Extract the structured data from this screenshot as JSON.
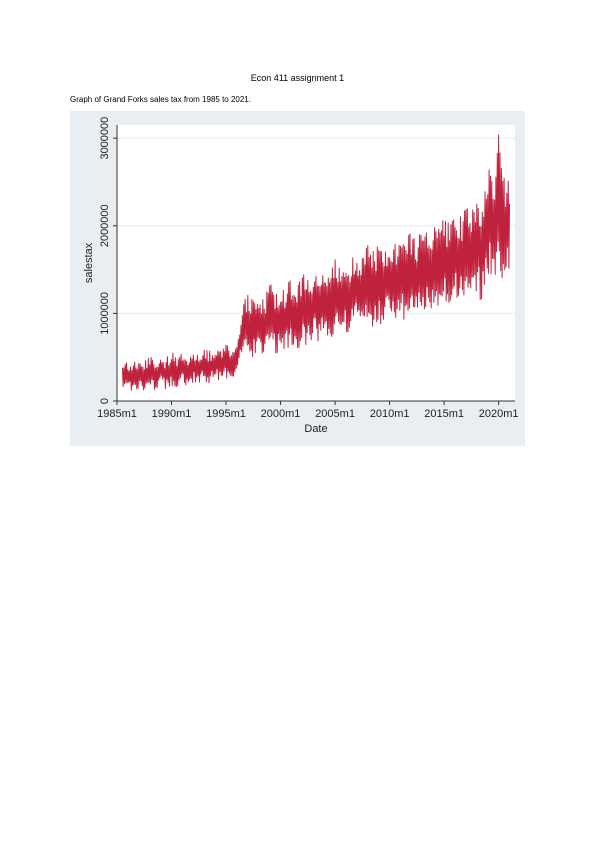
{
  "document": {
    "title": "Econ 411 assignment 1",
    "caption": "Graph of Grand Forks sales tax from 1985 to 2021."
  },
  "colors": {
    "line": "#c0213d",
    "plot_background": "#ffffff",
    "outer_background": "#e8eef2",
    "gridline": "#e6ebee"
  },
  "chart_data": {
    "type": "line",
    "title": "",
    "xlabel": "Date",
    "ylabel": "salestax",
    "x_ticks": [
      "1985m1",
      "1990m1",
      "1995m1",
      "2000m1",
      "2005m1",
      "2010m1",
      "2015m1",
      "2020m1"
    ],
    "x_tick_values": [
      1985,
      1990,
      1995,
      2000,
      2005,
      2010,
      2015,
      2020
    ],
    "y_ticks": [
      "0",
      "1000000",
      "2000000",
      "3000000"
    ],
    "y_tick_values": [
      0,
      1000000,
      2000000,
      3000000
    ],
    "xlim": [
      1985,
      2021.5
    ],
    "ylim": [
      0,
      3150000
    ],
    "grid": true,
    "series": [
      {
        "x": [
          1985.5,
          1986.0,
          1986.5,
          1987.0,
          1987.5,
          1988.0,
          1988.5,
          1989.0,
          1989.5,
          1990.0,
          1990.5,
          1991.0,
          1991.5,
          1992.0,
          1992.5,
          1993.0,
          1993.5,
          1994.0,
          1994.5,
          1995.0,
          1995.5,
          1996.0,
          1996.5,
          1997.0,
          1997.5,
          1998.0,
          1998.5,
          1999.0,
          1999.5,
          2000.0,
          2000.5,
          2001.0,
          2001.5,
          2002.0,
          2002.5,
          2003.0,
          2003.5,
          2004.0,
          2004.5,
          2005.0,
          2005.5,
          2006.0,
          2006.5,
          2007.0,
          2007.5,
          2008.0,
          2008.5,
          2009.0,
          2009.5,
          2010.0,
          2010.5,
          2011.0,
          2011.5,
          2012.0,
          2012.5,
          2013.0,
          2013.5,
          2014.0,
          2014.5,
          2015.0,
          2015.5,
          2016.0,
          2016.5,
          2017.0,
          2017.5,
          2018.0,
          2018.5,
          2019.0,
          2019.5,
          2020.0,
          2020.5,
          2021.0
        ],
        "y": [
          250000,
          290000,
          260000,
          320000,
          270000,
          330000,
          290000,
          350000,
          310000,
          370000,
          320000,
          380000,
          340000,
          400000,
          360000,
          420000,
          380000,
          440000,
          400000,
          460000,
          420000,
          500000,
          760000,
          880000,
          800000,
          920000,
          850000,
          980000,
          880000,
          1000000,
          920000,
          1030000,
          950000,
          1060000,
          990000,
          1100000,
          1030000,
          1150000,
          1080000,
          1200000,
          1130000,
          1250000,
          1180000,
          1300000,
          1230000,
          1330000,
          1270000,
          1370000,
          1300000,
          1410000,
          1340000,
          1450000,
          1380000,
          1500000,
          1420000,
          1560000,
          1460000,
          1600000,
          1500000,
          1640000,
          1540000,
          1680000,
          1580000,
          1720000,
          1620000,
          1760000,
          1660000,
          2100000,
          1950000,
          2300000,
          1900000,
          2250000
        ],
        "amplitude": [
          180000,
          180000,
          180000,
          180000,
          180000,
          180000,
          180000,
          180000,
          180000,
          190000,
          190000,
          190000,
          190000,
          190000,
          190000,
          190000,
          190000,
          200000,
          200000,
          200000,
          200000,
          200000,
          350000,
          350000,
          350000,
          350000,
          350000,
          380000,
          380000,
          380000,
          380000,
          380000,
          380000,
          400000,
          400000,
          400000,
          400000,
          420000,
          420000,
          420000,
          450000,
          450000,
          450000,
          450000,
          450000,
          450000,
          450000,
          480000,
          480000,
          480000,
          480000,
          480000,
          480000,
          500000,
          500000,
          500000,
          500000,
          500000,
          520000,
          520000,
          520000,
          520000,
          540000,
          540000,
          540000,
          550000,
          550000,
          700000,
          750000,
          800000,
          700000,
          650000
        ]
      }
    ]
  }
}
